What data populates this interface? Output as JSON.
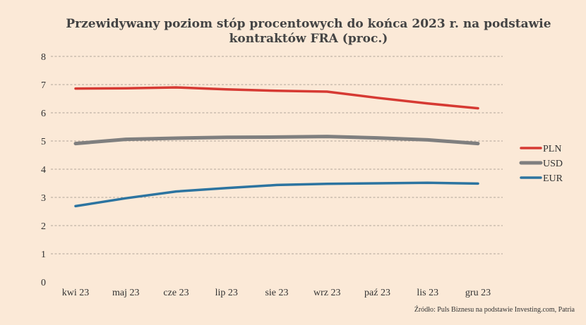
{
  "chart_data": {
    "type": "line",
    "title_line1": "Przewidywany poziom stóp procentowych do końca 2023 r. na podstawie",
    "title_line2": "kontraktów FRA (proc.)",
    "categories": [
      "kwi 23",
      "maj 23",
      "cze 23",
      "lip 23",
      "sie 23",
      "wrz 23",
      "paź 23",
      "lis 23",
      "gru 23"
    ],
    "ylim": [
      0,
      8
    ],
    "yticks": [
      0,
      1,
      2,
      3,
      4,
      5,
      6,
      7,
      8
    ],
    "grid": true,
    "legend_position": "right",
    "series": [
      {
        "name": "PLN",
        "color": "#d63a33",
        "values": [
          6.86,
          6.87,
          6.9,
          6.83,
          6.78,
          6.75,
          6.53,
          6.33,
          6.16
        ]
      },
      {
        "name": "USD",
        "color": "#7f7f7f",
        "values": [
          4.91,
          5.06,
          5.1,
          5.13,
          5.14,
          5.16,
          5.11,
          5.04,
          4.91
        ]
      },
      {
        "name": "EUR",
        "color": "#2c74a0",
        "values": [
          2.69,
          2.97,
          3.21,
          3.33,
          3.44,
          3.48,
          3.5,
          3.52,
          3.49
        ]
      }
    ]
  },
  "source_text": "Źródło: Puls Biznesu na podstawie Investing.com, Patria"
}
